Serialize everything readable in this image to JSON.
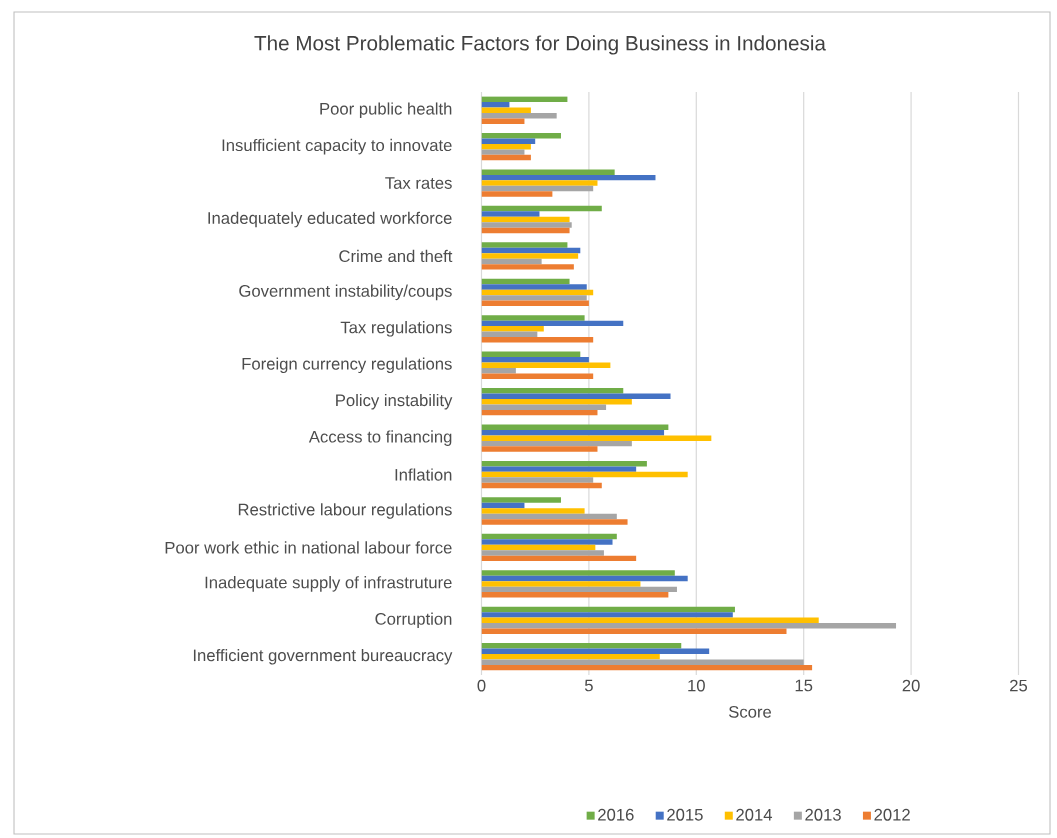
{
  "chart_data": {
    "type": "bar",
    "orientation": "horizontal",
    "title": "The Most Problematic Factors for Doing Business in Indonesia",
    "xlabel": "Score",
    "categories": [
      "Poor public health",
      "Insufficient capacity to innovate",
      "Tax rates",
      "Inadequately educated workforce",
      "Crime and theft",
      "Government instability/coups",
      "Tax regulations",
      "Foreign currency regulations",
      "Policy instability",
      "Access to financing",
      "Inflation",
      "Restrictive labour regulations",
      "Poor work ethic in national labour force",
      "Inadequate supply of infrastruture",
      "Corruption",
      "Inefficient government bureaucracy"
    ],
    "series": [
      {
        "name": "2016",
        "color": "#70ad47",
        "values": [
          4.0,
          3.7,
          6.2,
          5.6,
          4.0,
          4.1,
          4.8,
          4.6,
          6.6,
          8.7,
          7.7,
          3.7,
          6.3,
          9.0,
          11.8,
          9.3
        ]
      },
      {
        "name": "2015",
        "color": "#4472c4",
        "values": [
          1.3,
          2.5,
          8.1,
          2.7,
          4.6,
          4.9,
          6.6,
          5.0,
          8.8,
          8.5,
          7.2,
          2.0,
          6.1,
          9.6,
          11.7,
          10.6
        ]
      },
      {
        "name": "2014",
        "color": "#ffc000",
        "values": [
          2.3,
          2.3,
          5.4,
          4.1,
          4.5,
          5.2,
          2.9,
          6.0,
          7.0,
          10.7,
          9.6,
          4.8,
          5.3,
          7.4,
          15.7,
          8.3
        ]
      },
      {
        "name": "2013",
        "color": "#a5a5a5",
        "values": [
          3.5,
          2.0,
          5.2,
          4.2,
          2.8,
          4.9,
          2.6,
          1.6,
          5.8,
          7.0,
          5.2,
          6.3,
          5.7,
          9.1,
          19.3,
          15.0
        ]
      },
      {
        "name": "2012",
        "color": "#ed7d31",
        "values": [
          2.0,
          2.3,
          3.3,
          4.1,
          4.3,
          5.0,
          5.2,
          5.2,
          5.4,
          5.4,
          5.6,
          6.8,
          7.2,
          8.7,
          14.2,
          15.4
        ]
      }
    ],
    "xlim": [
      0,
      25
    ],
    "xticks": [
      0,
      5,
      10,
      15,
      20,
      25
    ],
    "grid": "x",
    "legend": "bottom"
  }
}
